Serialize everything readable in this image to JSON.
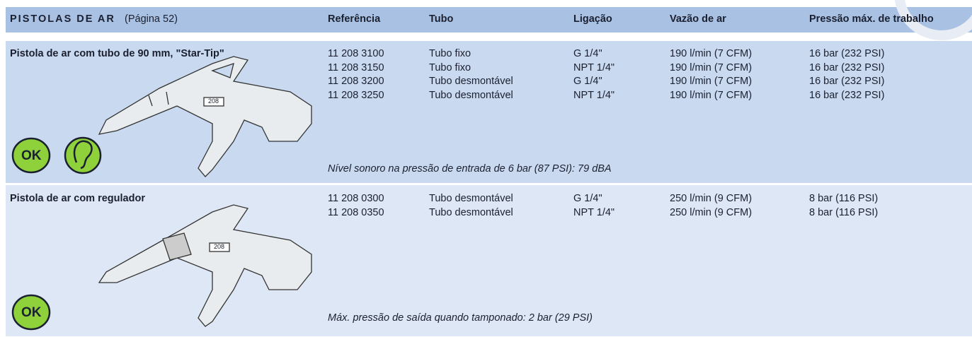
{
  "header": {
    "title": "PISTOLAS DE AR",
    "page_ref": "(Página 52)",
    "columns": [
      "Referência",
      "Tubo",
      "Ligação",
      "Vazão de ar",
      "Pressão máx. de trabalho"
    ]
  },
  "sections": [
    {
      "title": "Pistola de ar com tubo de 90 mm, \"Star-Tip\"",
      "rows": [
        [
          "11 208 3100",
          "Tubo fixo",
          "G 1/4\"",
          "190 l/min (7 CFM)",
          "16 bar (232 PSI)"
        ],
        [
          "11 208 3150",
          "Tubo fixo",
          "NPT 1/4\"",
          "190 l/min (7 CFM)",
          "16 bar (232 PSI)"
        ],
        [
          "11 208 3200",
          "Tubo desmontável",
          "G 1/4\"",
          "190 l/min (7 CFM)",
          "16 bar (232 PSI)"
        ],
        [
          "11 208 3250",
          "Tubo desmontável",
          "NPT 1/4\"",
          "190 l/min (7 CFM)",
          "16 bar (232 PSI)"
        ]
      ],
      "note": "Nível sonoro na pressão de entrada de 6 bar (87 PSI): 79 dBA",
      "badge": "OK",
      "gun_label": "208"
    },
    {
      "title": "Pistola de ar com regulador",
      "rows": [
        [
          "11 208 0300",
          "Tubo desmontável",
          "G 1/4\"",
          "250 l/min (9 CFM)",
          "8 bar (116 PSI)"
        ],
        [
          "11 208 0350",
          "Tubo desmontável",
          "NPT 1/4\"",
          "250 l/min (9 CFM)",
          "8 bar (116 PSI)"
        ]
      ],
      "note": "Máx. pressão de saída quando tamponado: 2 bar (29 PSI)",
      "badge": "OK",
      "gun_label": "208"
    }
  ]
}
